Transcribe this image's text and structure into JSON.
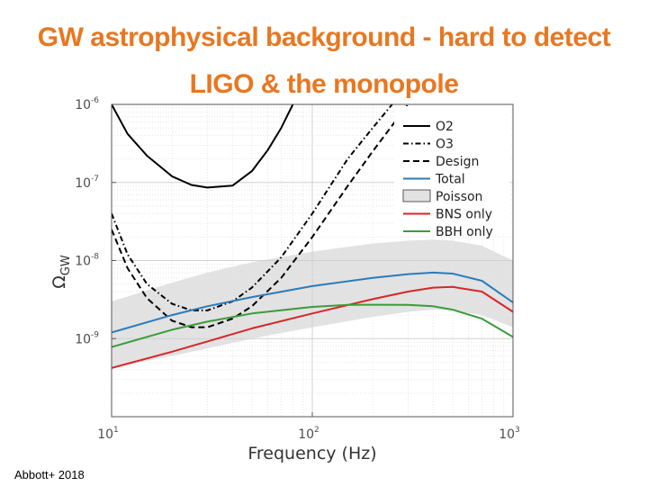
{
  "slide": {
    "title_line1": "GW astrophysical background - hard to detect",
    "title_line2": "LIGO & the monopole",
    "citation": "Abbott+ 2018"
  },
  "chart_data": {
    "type": "line",
    "xlabel": "Frequency (Hz)",
    "ylabel": "Ω",
    "ylabel_sub": "GW",
    "x_scale": "log",
    "y_scale": "log",
    "xlim": [
      10,
      1000
    ],
    "ylim": [
      1e-10,
      1e-06
    ],
    "x_ticks": [
      {
        "value": 10,
        "base": "10",
        "exp": "1"
      },
      {
        "value": 100,
        "base": "10",
        "exp": "2"
      },
      {
        "value": 1000,
        "base": "10",
        "exp": "3"
      }
    ],
    "y_ticks": [
      {
        "value": 1e-06,
        "base": "10",
        "exp": "-6"
      },
      {
        "value": 1e-07,
        "base": "10",
        "exp": "-7"
      },
      {
        "value": 1e-08,
        "base": "10",
        "exp": "-8"
      },
      {
        "value": 1e-09,
        "base": "10",
        "exp": "-9"
      }
    ],
    "grid": true,
    "legend_position": "top-right",
    "series": [
      {
        "name": "O2",
        "style": "solid",
        "color": "#000000",
        "x": [
          10,
          12,
          15,
          20,
          25,
          30,
          40,
          50,
          60,
          70,
          80
        ],
        "y": [
          1e-06,
          4.2e-07,
          2.2e-07,
          1.2e-07,
          9.3e-08,
          8.6e-08,
          9.1e-08,
          1.4e-07,
          2.6e-07,
          5e-07,
          1e-06
        ]
      },
      {
        "name": "O3",
        "style": "dashdot",
        "color": "#000000",
        "x": [
          10,
          12,
          15,
          20,
          25,
          30,
          40,
          50,
          70,
          100,
          150,
          200,
          250
        ],
        "y": [
          4e-08,
          1.2e-08,
          5e-09,
          2.8e-09,
          2.3e-09,
          2.3e-09,
          3e-09,
          4.5e-09,
          1.1e-08,
          4e-08,
          2e-07,
          5e-07,
          1e-06
        ]
      },
      {
        "name": "Design",
        "style": "dashed",
        "color": "#000000",
        "x": [
          10,
          12,
          15,
          20,
          25,
          30,
          40,
          50,
          70,
          100,
          150,
          200,
          300
        ],
        "y": [
          2.5e-08,
          8e-09,
          3.3e-09,
          1.7e-09,
          1.4e-09,
          1.4e-09,
          1.8e-09,
          2.6e-09,
          6e-09,
          2e-08,
          9e-08,
          2.5e-07,
          1e-06
        ]
      },
      {
        "name": "Total",
        "style": "solid",
        "color": "#2b7bba",
        "x": [
          10,
          20,
          30,
          50,
          100,
          200,
          300,
          400,
          500,
          700,
          1000
        ],
        "y": [
          1.2e-09,
          2e-09,
          2.6e-09,
          3.4e-09,
          4.7e-09,
          6e-09,
          6.7e-09,
          7e-09,
          6.8e-09,
          5.5e-09,
          2.9e-09
        ]
      },
      {
        "name": "Poisson",
        "style": "band",
        "color": "#e2e2e2",
        "x": [
          10,
          20,
          30,
          50,
          100,
          200,
          300,
          400,
          500,
          700,
          1000
        ],
        "y_upper": [
          3e-09,
          5.2e-09,
          7e-09,
          9.5e-09,
          1.3e-08,
          1.65e-08,
          1.8e-08,
          1.85e-08,
          1.8e-08,
          1.55e-08,
          1e-08
        ],
        "y_lower": [
          4.2e-10,
          6e-10,
          7.5e-10,
          1e-09,
          1.4e-09,
          1.9e-09,
          2.2e-09,
          2.35e-09,
          2.3e-09,
          2e-09,
          1.4e-09
        ]
      },
      {
        "name": "BNS only",
        "style": "solid",
        "color": "#d62728",
        "x": [
          10,
          20,
          30,
          50,
          100,
          200,
          300,
          400,
          500,
          700,
          1000
        ],
        "y": [
          4.2e-10,
          6.8e-10,
          9.2e-10,
          1.35e-09,
          2.1e-09,
          3.2e-09,
          4e-09,
          4.5e-09,
          4.6e-09,
          4e-09,
          2.2e-09
        ]
      },
      {
        "name": "BBH only",
        "style": "solid",
        "color": "#3a9c3a",
        "x": [
          10,
          20,
          30,
          50,
          100,
          150,
          200,
          300,
          400,
          500,
          700,
          1000
        ],
        "y": [
          7.8e-10,
          1.3e-09,
          1.65e-09,
          2.1e-09,
          2.55e-09,
          2.7e-09,
          2.72e-09,
          2.7e-09,
          2.6e-09,
          2.35e-09,
          1.8e-09,
          1.05e-09
        ]
      }
    ]
  }
}
